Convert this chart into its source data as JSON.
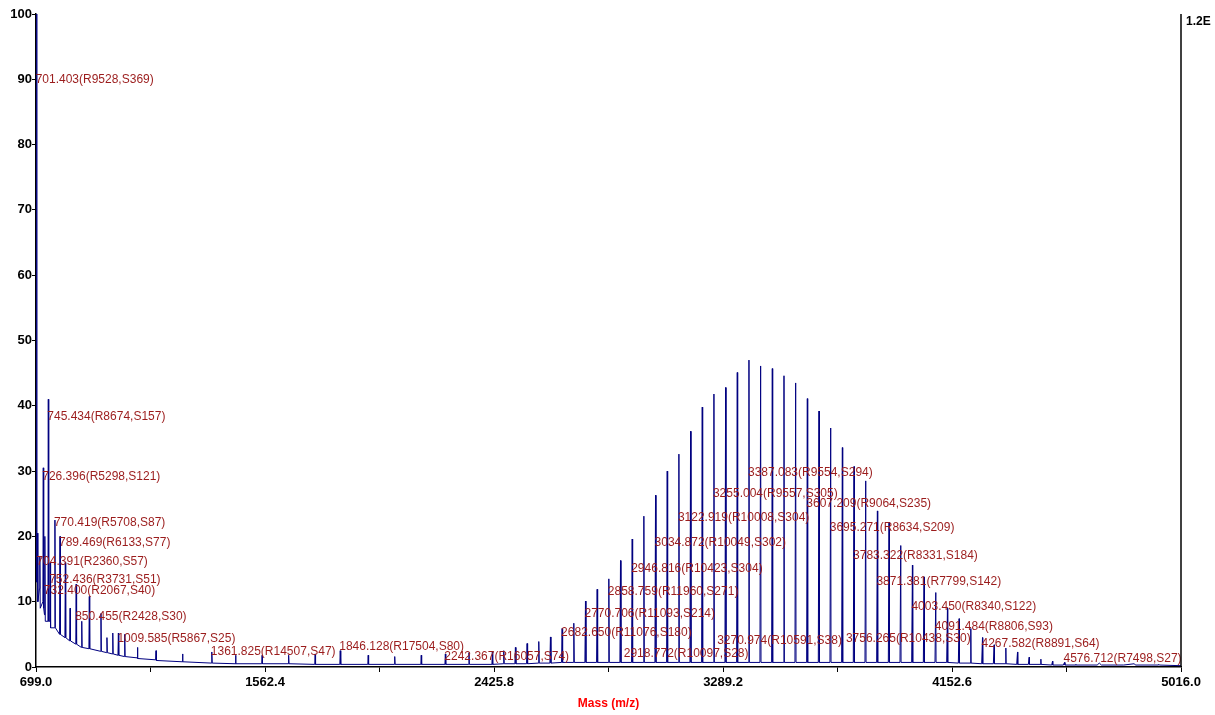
{
  "chart_data": {
    "type": "line",
    "xlabel": "Mass (m/z)",
    "xlim": [
      699,
      5016
    ],
    "xticks": [
      {
        "value": 699,
        "label": "699.0"
      },
      {
        "value": 1130.7,
        "label": null
      },
      {
        "value": 1562.4,
        "label": "1562.4"
      },
      {
        "value": 1994.1,
        "label": null
      },
      {
        "value": 2425.8,
        "label": "2425.8"
      },
      {
        "value": 2857.5,
        "label": null
      },
      {
        "value": 3289.2,
        "label": "3289.2"
      },
      {
        "value": 3720.9,
        "label": null
      },
      {
        "value": 4152.6,
        "label": "4152.6"
      },
      {
        "value": 4584.3,
        "label": null
      },
      {
        "value": 5016,
        "label": "5016.0"
      }
    ],
    "ylim": [
      0,
      100
    ],
    "yticks": [
      0,
      10,
      20,
      30,
      40,
      50,
      60,
      70,
      80,
      90,
      100
    ],
    "grid": false,
    "legend": false,
    "marker": "none",
    "line_style": "solid",
    "series": [
      {
        "color": "#000080",
        "x": [
          699.0,
          701.4,
          702.6,
          704.4,
          706,
          712,
          713.5,
          715,
          725,
          726.4,
          728,
          731,
          732.4,
          734,
          744,
          745.4,
          747,
          751,
          752.4,
          754,
          769,
          770.4,
          772,
          788,
          789.5,
          791,
          808,
          809.6,
          811,
          826,
          827.5,
          829,
          849,
          850.5,
          852,
          870,
          871.5,
          873,
          898.5,
          900,
          901.5,
          942.5,
          944,
          945.5,
          965,
          966.5,
          968,
          987,
          988.5,
          990,
          1008,
          1009.6,
          1011,
          1032,
          1033.5,
          1035,
          1080,
          1081.5,
          1083,
          1150,
          1151.5,
          1153,
          1250,
          1251.5,
          1253,
          1360,
          1361.825,
          1363.5,
          1450,
          1451.5,
          1453,
          1550,
          1551.5,
          1553,
          1650,
          1651.5,
          1653,
          1750,
          1751.5,
          1753,
          1844.5,
          1846.1,
          1848,
          1950,
          1951.5,
          1953,
          2050,
          2051.5,
          2053,
          2150,
          2151.5,
          2153,
          2240.8,
          2242.4,
          2244,
          2330,
          2331.5,
          2333,
          2418,
          2419.5,
          2421,
          2460.5,
          2462.52,
          2464.5,
          2504.5,
          2506.55,
          2508.5,
          2548.5,
          2550.57,
          2552.5,
          2592.5,
          2594.6,
          2596.5,
          2636.5,
          2638.62,
          2640.5,
          2680.5,
          2682.65,
          2684.5,
          2724.5,
          2726.68,
          2728.5,
          2768.5,
          2770.7,
          2772.5,
          2812.5,
          2814.73,
          2816.5,
          2856.5,
          2858.75,
          2860.5,
          2900.5,
          2902.78,
          2904.5,
          2944.5,
          2946.81,
          2948.5,
          2988.5,
          2990.83,
          2992.5,
          3032.5,
          3034.86,
          3036.5,
          3076.5,
          3078.88,
          3080.5,
          3120.5,
          3122.91,
          3124.5,
          3164.5,
          3166.94,
          3168.5,
          3208.5,
          3210.96,
          3212.5,
          3252.5,
          3254.99,
          3256.5,
          3296.5,
          3299.01,
          3300.5,
          3340.5,
          3343.04,
          3344.5,
          3384.5,
          3387.07,
          3388.5,
          3428.5,
          3431.09,
          3432.5,
          3472.5,
          3475.12,
          3476.5,
          3516.5,
          3519.14,
          3520.5,
          3560.5,
          3563.17,
          3564.5,
          3604.5,
          3607.2,
          3608.5,
          3648.5,
          3651.22,
          3652.5,
          3692.5,
          3695.25,
          3696.5,
          3736.5,
          3739.27,
          3740.5,
          3780.5,
          3783.3,
          3784.5,
          3824.5,
          3827.33,
          3828.5,
          3868.5,
          3871.35,
          3872.5,
          3912.5,
          3915.38,
          3916.5,
          3956.5,
          3959.4,
          3960.5,
          4000.5,
          4003.43,
          4004.5,
          4044.5,
          4047.46,
          4048.5,
          4088.5,
          4091.48,
          4092.5,
          4132.5,
          4135.51,
          4136.5,
          4176.5,
          4179.53,
          4180.5,
          4220.5,
          4223.56,
          4224.5,
          4264.5,
          4267.59,
          4268.5,
          4308.5,
          4311.61,
          4312.5,
          4352.5,
          4355.64,
          4356.5,
          4396.5,
          4399.66,
          4400.5,
          4440.5,
          4443.69,
          4444.5,
          4484.5,
          4487.72,
          4488.5,
          4528.5,
          4531.74,
          4532.5,
          4572.5,
          4576.712,
          4578.5,
          4616.5,
          4619.79,
          4620.5,
          4700,
          4708,
          4716,
          4800,
          4840,
          4844,
          4930,
          4932,
          4934,
          5016.0
        ],
        "values": [
          16,
          100,
          13,
          20.5,
          10,
          12,
          17,
          9,
          10,
          30.5,
          9,
          8,
          20,
          7,
          7,
          41,
          7,
          7,
          16,
          6,
          6,
          22.5,
          6,
          5,
          20,
          5,
          4.5,
          16,
          4.5,
          4,
          9,
          4,
          3.5,
          12.7,
          3.5,
          3,
          7,
          3,
          2.8,
          10.8,
          2.8,
          2.4,
          8.2,
          2.4,
          2.2,
          4.5,
          2.2,
          2,
          5.2,
          2,
          1.8,
          5.2,
          1.8,
          1.6,
          5,
          1.6,
          1.4,
          3,
          1.3,
          1.1,
          2.5,
          1,
          0.8,
          2,
          0.8,
          0.6,
          2.3,
          0.6,
          0.5,
          1.8,
          0.5,
          0.5,
          1.8,
          0.5,
          0.5,
          1.8,
          0.5,
          0.4,
          2,
          0.4,
          0.4,
          2.5,
          0.4,
          0.4,
          1.8,
          0.4,
          0.4,
          1.6,
          0.4,
          0.4,
          1.8,
          0.4,
          0.4,
          2,
          0.4,
          0.4,
          2.2,
          0.4,
          0.4,
          2.4,
          0.4,
          0.5,
          2.5,
          0.5,
          0.5,
          3,
          0.5,
          0.5,
          3.6,
          0.5,
          0.6,
          3.9,
          0.6,
          0.6,
          4.6,
          0.6,
          0.7,
          5.9,
          0.7,
          0.7,
          6.7,
          0.7,
          0.7,
          10.1,
          0.7,
          0.7,
          11.9,
          0.7,
          0.7,
          13.5,
          0.7,
          0.7,
          16.3,
          0.7,
          0.7,
          19.6,
          0.7,
          0.7,
          23.1,
          0.7,
          0.7,
          26.3,
          0.7,
          0.7,
          30,
          0.7,
          0.7,
          32.6,
          0.7,
          0.7,
          36.1,
          0.7,
          0.7,
          39.8,
          0.7,
          0.7,
          41.8,
          0.7,
          0.7,
          42.8,
          0.7,
          0.7,
          45.1,
          0.7,
          0.7,
          47,
          0.7,
          0.7,
          46.1,
          0.7,
          0.7,
          45.7,
          0.7,
          0.7,
          44.6,
          0.7,
          0.7,
          43.5,
          0.7,
          0.7,
          41.1,
          0.7,
          0.7,
          39.2,
          0.7,
          0.7,
          36.6,
          0.7,
          0.7,
          33.6,
          0.7,
          0.7,
          30.7,
          0.7,
          0.7,
          28.5,
          0.7,
          0.7,
          23.9,
          0.7,
          0.7,
          22.2,
          0.7,
          0.7,
          18.6,
          0.7,
          0.7,
          15.6,
          0.7,
          0.7,
          13.8,
          0.7,
          0.7,
          11.4,
          0.7,
          0.7,
          9,
          0.7,
          0.6,
          7.4,
          0.6,
          0.6,
          5.9,
          0.6,
          0.5,
          4.5,
          0.5,
          0.5,
          3.4,
          0.5,
          0.5,
          2.9,
          0.5,
          0.4,
          2.3,
          0.4,
          0.4,
          1.5,
          0.4,
          0.4,
          1.2,
          0.4,
          0.3,
          0.9,
          0.3,
          0.3,
          0.7,
          0.3,
          0.3,
          0.4,
          0.3,
          0.3,
          0.6,
          0.3,
          0.3,
          0.5,
          0.3,
          0.3,
          0.4,
          0.3,
          0.2
        ]
      }
    ],
    "annotations": [
      "1.2E",
      {
        "text": "701.403(R9528,S369)",
        "x": 701.403,
        "y": 90
      },
      {
        "text": "745.434(R8674,S157)",
        "x": 745.434,
        "y": 38.3
      },
      {
        "text": "726.396(R5298,S121)",
        "x": 726.396,
        "y": 29.2
      },
      {
        "text": "770.419(R5708,S87)",
        "x": 770.419,
        "y": 22.1
      },
      {
        "text": "789.469(R6133,S77)",
        "x": 789.469,
        "y": 19.1
      },
      {
        "text": "704.391(R2360,S57)",
        "x": 704.391,
        "y": 16.1
      },
      {
        "text": "752.436(R3731,S51)",
        "x": 752.436,
        "y": 13.3
      },
      {
        "text": "732.400(R2067,S40)",
        "x": 732.4,
        "y": 11.7
      },
      {
        "text": "850.455(R2428,S30)",
        "x": 850.455,
        "y": 7.7
      },
      {
        "text": "1009.585(R5867,S25)",
        "x": 1009.585,
        "y": 4.3
      },
      {
        "text": "1361.825(R14507,S47)",
        "x": 1361.825,
        "y": 2.3
      },
      {
        "text": "1846.128(R17504,S80)",
        "x": 1846.128,
        "y": 3.1
      },
      {
        "text": "2242.367(R16057,S74)",
        "x": 2242.367,
        "y": 1.6
      },
      {
        "text": "2682.650(R11076,S180)",
        "x": 2682.65,
        "y": 5.2
      },
      {
        "text": "2770.706(R11093,S214)",
        "x": 2770.706,
        "y": 8.1
      },
      {
        "text": "2858.759(R11960,S271)",
        "x": 2858.759,
        "y": 11.5
      },
      {
        "text": "2946.816(R10423,S304)",
        "x": 2946.816,
        "y": 15
      },
      {
        "text": "3034.872(R10049,S302)",
        "x": 3034.872,
        "y": 19.1
      },
      {
        "text": "3122.919(R10008,S304)",
        "x": 3122.919,
        "y": 22.8
      },
      {
        "text": "3255.004(R9557,S305)",
        "x": 3255.004,
        "y": 26.6
      },
      {
        "text": "3387.083(R9554,S294)",
        "x": 3387.083,
        "y": 29.7
      },
      {
        "text": "3607.209(R9064,S235)",
        "x": 3607.209,
        "y": 25
      },
      {
        "text": "3695.271(R8634,S209)",
        "x": 3695.271,
        "y": 21.4
      },
      {
        "text": "3783.322(R8331,S184)",
        "x": 3783.322,
        "y": 17
      },
      {
        "text": "3871.381(R7799,S142)",
        "x": 3871.381,
        "y": 13
      },
      {
        "text": "4003.450(R8340,S122)",
        "x": 4003.45,
        "y": 9.2
      },
      {
        "text": "4091.484(R8806,S93)",
        "x": 4091.484,
        "y": 6.1
      },
      {
        "text": "4267.582(R8891,S64)",
        "x": 4267.582,
        "y": 3.5
      },
      {
        "text": "4576.712(R7498,S27)",
        "x": 4576.712,
        "y": 1.3
      },
      {
        "text": "2918.772(R10097,S28)",
        "x": 2918.772,
        "y": 2.1
      },
      {
        "text": "3270.974(R10591,S38)",
        "x": 3270.974,
        "y": 4
      },
      {
        "text": "3756.265(R10438,S30)",
        "x": 3756.265,
        "y": 4.4
      }
    ]
  }
}
